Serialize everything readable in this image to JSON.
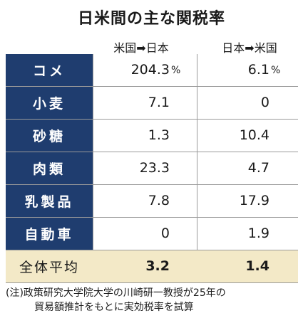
{
  "chart_data": {
    "type": "table",
    "title": "日米間の主な関税率",
    "columns": [
      "米国➡日本",
      "日本➡米国"
    ],
    "unit": "%",
    "rows": [
      {
        "label": "コメ",
        "us_to_japan": "204.3",
        "japan_to_us": "6.1"
      },
      {
        "label": "小麦",
        "us_to_japan": "7.1",
        "japan_to_us": "0"
      },
      {
        "label": "砂糖",
        "us_to_japan": "1.3",
        "japan_to_us": "10.4"
      },
      {
        "label": "肉類",
        "us_to_japan": "23.3",
        "japan_to_us": "4.7"
      },
      {
        "label": "乳製品",
        "us_to_japan": "7.8",
        "japan_to_us": "17.9"
      },
      {
        "label": "自動車",
        "us_to_japan": "0",
        "japan_to_us": "1.9"
      }
    ],
    "average": {
      "label": "全体平均",
      "us_to_japan": "3.2",
      "japan_to_us": "1.4"
    },
    "note_line1": "(注)政策研究大学院大学の川崎研一教授が25年の",
    "note_line2": "貿易額推計をもとに実効税率を試算"
  }
}
